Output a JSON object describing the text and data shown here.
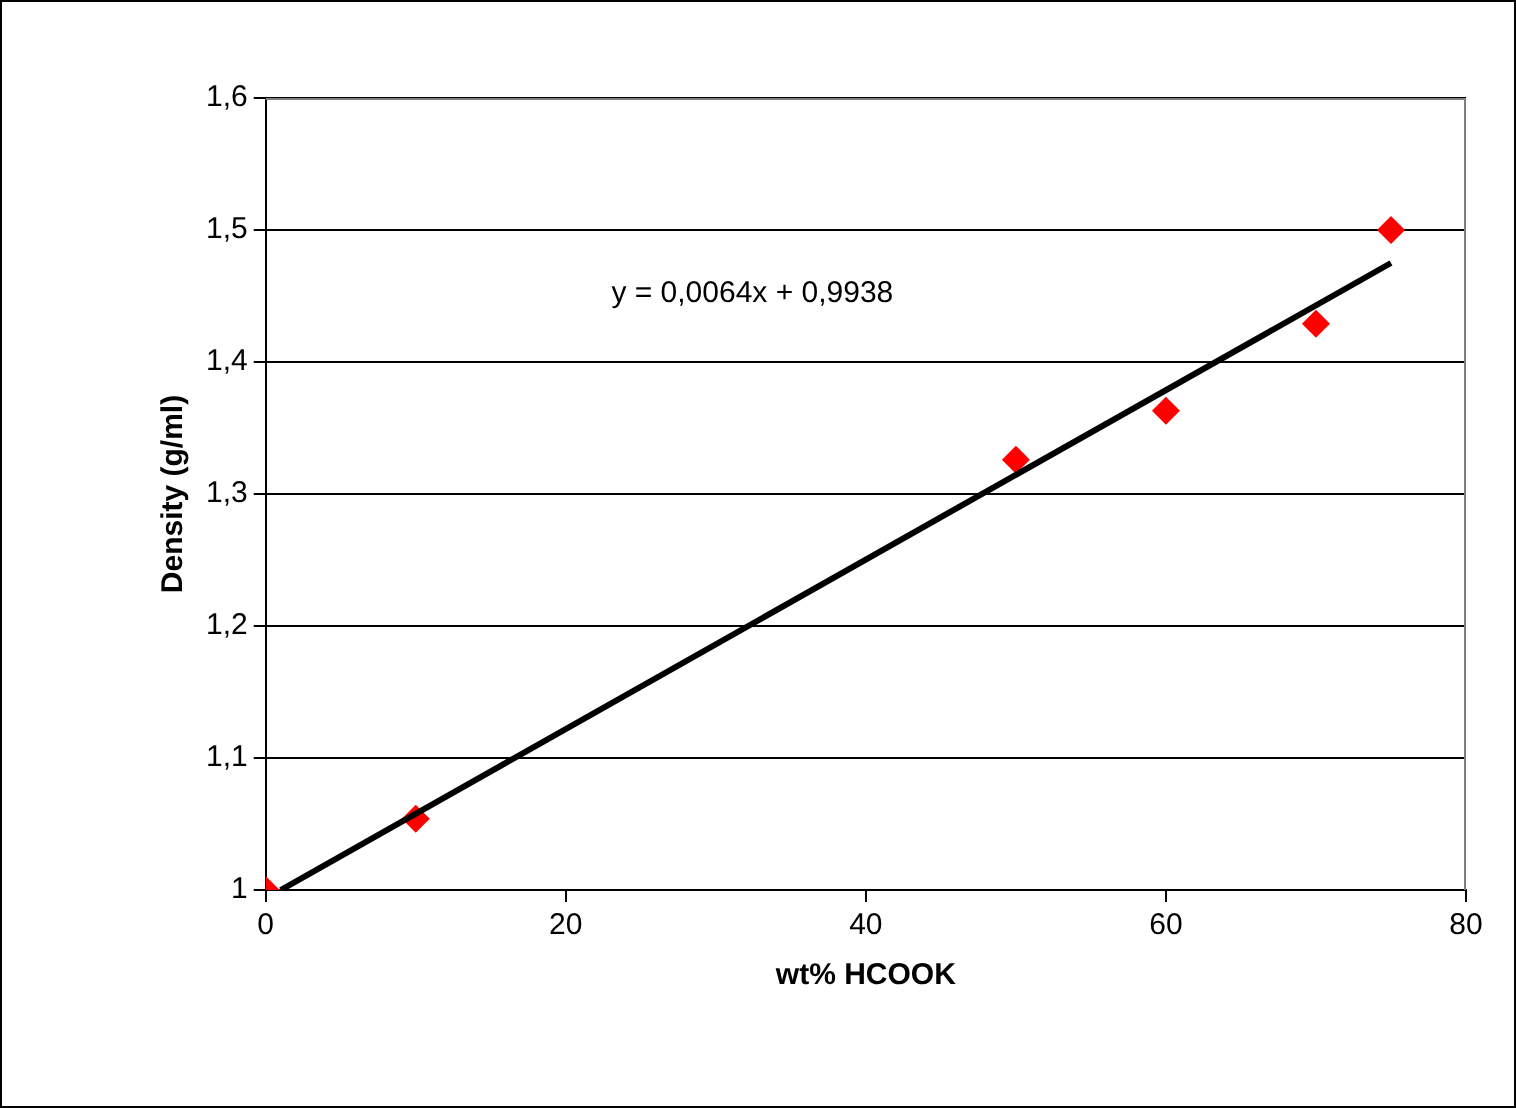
{
  "chart_data": {
    "type": "scatter",
    "xlabel": "wt% HCOOK",
    "ylabel": "Density (g/ml)",
    "xlim": [
      0,
      80
    ],
    "xticks": [
      0,
      20,
      40,
      60,
      80
    ],
    "ylim": [
      1,
      1.6
    ],
    "yticks": [
      1,
      {
        "value": 1.1,
        "label": "1,1"
      },
      {
        "value": 1.2,
        "label": "1,2"
      },
      {
        "value": 1.3,
        "label": "1,3"
      },
      {
        "value": 1.4,
        "label": "1,4"
      },
      {
        "value": 1.5,
        "label": "1,5"
      },
      {
        "value": 1.6,
        "label": "1,6"
      }
    ],
    "grid": "y",
    "legend": false,
    "series": [
      {
        "color": "#ff0000",
        "marker": "diamond",
        "x": [
          0,
          10,
          50,
          60,
          70,
          75
        ],
        "values": [
          1.0,
          1.054,
          1.326,
          1.363,
          1.429,
          1.5
        ]
      },
      {
        "type": "line",
        "color": "#000000",
        "marker": "none",
        "x": [
          1,
          75
        ],
        "values": [
          1.0,
          1.475
        ]
      }
    ],
    "annotations": [
      "y = 0,0064x + 0,9938"
    ]
  }
}
